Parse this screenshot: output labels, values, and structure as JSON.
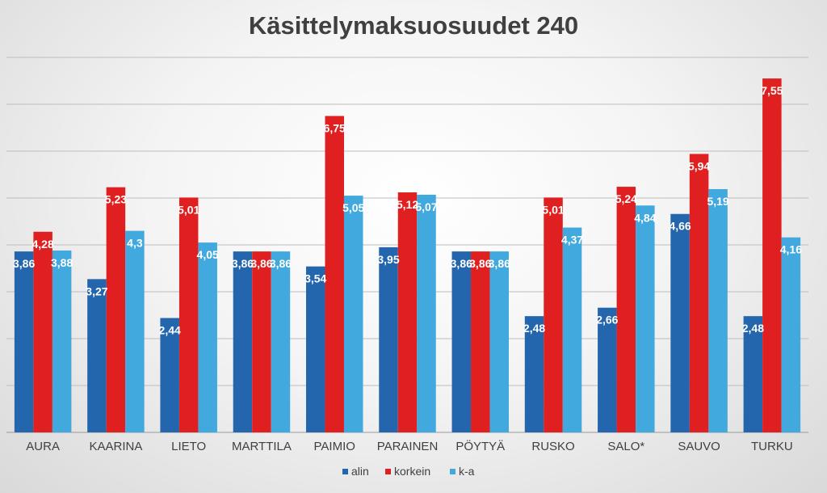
{
  "chart_data": {
    "type": "bar",
    "title": "Käsittelymaksuosuudet 240",
    "xlabel": "",
    "ylabel": "",
    "ylim": [
      0,
      8
    ],
    "grid": true,
    "legend_position": "bottom",
    "categories": [
      "AURA",
      "KAARINA",
      "LIETO",
      "MARTTILA",
      "PAIMIO",
      "PARAINEN",
      "PÖYTYÄ",
      "RUSKO",
      "SALO*",
      "SAUVO",
      "TURKU"
    ],
    "series": [
      {
        "name": "alin",
        "color": "#2466AE",
        "values": [
          3.86,
          3.27,
          2.44,
          3.86,
          3.54,
          3.95,
          3.86,
          2.48,
          2.66,
          4.66,
          2.48
        ],
        "labels": [
          "3,86",
          "3,27",
          "2,44",
          "3,86",
          "3,54",
          "3,95",
          "3,86",
          "2,48",
          "2,66",
          "4,66",
          "2,48"
        ]
      },
      {
        "name": "korkein",
        "color": "#E02020",
        "values": [
          4.28,
          5.23,
          5.01,
          3.86,
          6.75,
          5.12,
          3.86,
          5.01,
          5.24,
          5.94,
          7.55
        ],
        "labels": [
          "4,28",
          "5,23",
          "5,01",
          "3,86",
          "6,75",
          "5,12",
          "3,86",
          "5,01",
          "5,24",
          "5,94",
          "7,55"
        ]
      },
      {
        "name": "k-a",
        "color": "#41A9DE",
        "values": [
          3.88,
          4.3,
          4.05,
          3.86,
          5.05,
          5.07,
          3.86,
          4.37,
          4.84,
          5.19,
          4.16
        ],
        "labels": [
          "3,88",
          "4,3",
          "4,05",
          "3,86",
          "5,05",
          "5,07",
          "3,86",
          "4,37",
          "4,84",
          "5,19",
          "4,16"
        ]
      }
    ]
  }
}
